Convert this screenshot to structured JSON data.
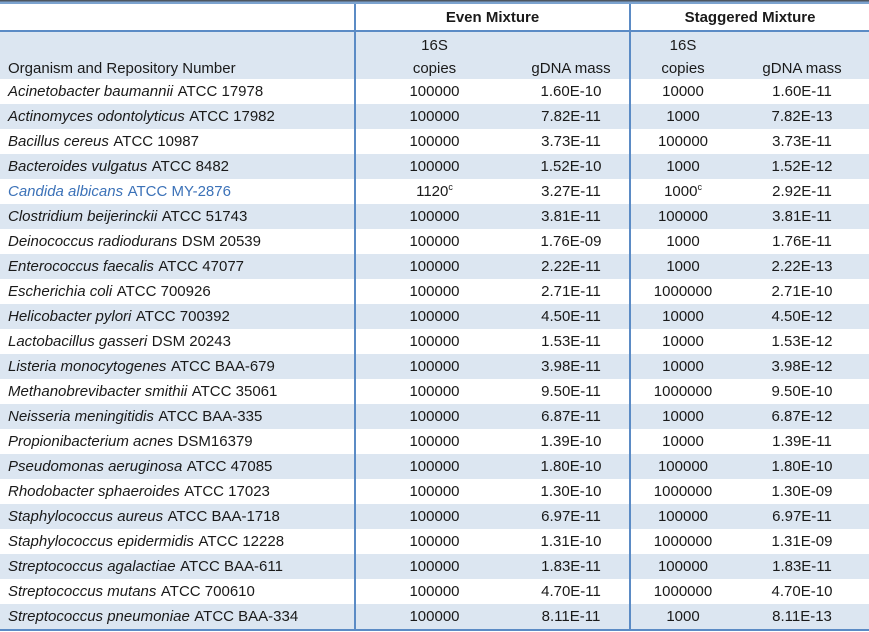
{
  "chart_data": {
    "type": "table",
    "title": "",
    "group_headers": [
      "Even Mixture",
      "Staggered Mixture"
    ],
    "subheader_16s": "16S",
    "col_headers": {
      "organism": "Organism and Repository Number",
      "copies": "copies",
      "gdna_mass": "gDNA mass"
    },
    "footnote_marker": "c",
    "colors": {
      "stripe": "#DCE6F1",
      "rule_blue": "#5B8BC5",
      "highlight_text": "#3C72B8",
      "text": "#1A1A1A"
    },
    "rows": [
      {
        "organism_italic": "Acinetobacter baumannii",
        "organism_rest": "ATCC 17978",
        "even_copies": "100000",
        "even_copies_sup": "",
        "even_gdna": "1.60E-10",
        "stag_copies": "10000",
        "stag_copies_sup": "",
        "stag_gdna": "1.60E-11",
        "highlight": false
      },
      {
        "organism_italic": "Actinomyces odontolyticus",
        "organism_rest": "ATCC 17982",
        "even_copies": "100000",
        "even_copies_sup": "",
        "even_gdna": "7.82E-11",
        "stag_copies": "1000",
        "stag_copies_sup": "",
        "stag_gdna": "7.82E-13",
        "highlight": false
      },
      {
        "organism_italic": "Bacillus cereus",
        "organism_rest": "ATCC 10987",
        "even_copies": "100000",
        "even_copies_sup": "",
        "even_gdna": "3.73E-11",
        "stag_copies": "100000",
        "stag_copies_sup": "",
        "stag_gdna": "3.73E-11",
        "highlight": false
      },
      {
        "organism_italic": "Bacteroides vulgatus",
        "organism_rest": "ATCC 8482",
        "even_copies": "100000",
        "even_copies_sup": "",
        "even_gdna": "1.52E-10",
        "stag_copies": "1000",
        "stag_copies_sup": "",
        "stag_gdna": "1.52E-12",
        "highlight": false
      },
      {
        "organism_italic": "Candida albicans",
        "organism_rest": "ATCC MY-2876",
        "even_copies": "1120",
        "even_copies_sup": "c",
        "even_gdna": "3.27E-11",
        "stag_copies": "1000",
        "stag_copies_sup": "c",
        "stag_gdna": "2.92E-11",
        "highlight": true
      },
      {
        "organism_italic": "Clostridium beijerinckii",
        "organism_rest": "ATCC 51743",
        "even_copies": "100000",
        "even_copies_sup": "",
        "even_gdna": "3.81E-11",
        "stag_copies": "100000",
        "stag_copies_sup": "",
        "stag_gdna": "3.81E-11",
        "highlight": false
      },
      {
        "organism_italic": "Deinococcus radiodurans",
        "organism_rest": "DSM 20539",
        "even_copies": "100000",
        "even_copies_sup": "",
        "even_gdna": "1.76E-09",
        "stag_copies": "1000",
        "stag_copies_sup": "",
        "stag_gdna": "1.76E-11",
        "highlight": false
      },
      {
        "organism_italic": "Enterococcus faecalis",
        "organism_rest": "ATCC 47077",
        "even_copies": "100000",
        "even_copies_sup": "",
        "even_gdna": "2.22E-11",
        "stag_copies": "1000",
        "stag_copies_sup": "",
        "stag_gdna": "2.22E-13",
        "highlight": false
      },
      {
        "organism_italic": "Escherichia coli",
        "organism_rest": "ATCC 700926",
        "even_copies": "100000",
        "even_copies_sup": "",
        "even_gdna": "2.71E-11",
        "stag_copies": "1000000",
        "stag_copies_sup": "",
        "stag_gdna": "2.71E-10",
        "highlight": false
      },
      {
        "organism_italic": "Helicobacter pylori",
        "organism_rest": "ATCC 700392",
        "even_copies": "100000",
        "even_copies_sup": "",
        "even_gdna": "4.50E-11",
        "stag_copies": "10000",
        "stag_copies_sup": "",
        "stag_gdna": "4.50E-12",
        "highlight": false
      },
      {
        "organism_italic": "Lactobacillus gasseri",
        "organism_rest": "DSM 20243",
        "even_copies": "100000",
        "even_copies_sup": "",
        "even_gdna": "1.53E-11",
        "stag_copies": "10000",
        "stag_copies_sup": "",
        "stag_gdna": "1.53E-12",
        "highlight": false
      },
      {
        "organism_italic": "Listeria monocytogenes",
        "organism_rest": "ATCC BAA-679",
        "even_copies": "100000",
        "even_copies_sup": "",
        "even_gdna": "3.98E-11",
        "stag_copies": "10000",
        "stag_copies_sup": "",
        "stag_gdna": "3.98E-12",
        "highlight": false
      },
      {
        "organism_italic": "Methanobrevibacter smithii",
        "organism_rest": "ATCC 35061",
        "even_copies": "100000",
        "even_copies_sup": "",
        "even_gdna": "9.50E-11",
        "stag_copies": "1000000",
        "stag_copies_sup": "",
        "stag_gdna": "9.50E-10",
        "highlight": false
      },
      {
        "organism_italic": "Neisseria meningitidis",
        "organism_rest": "ATCC BAA-335",
        "even_copies": "100000",
        "even_copies_sup": "",
        "even_gdna": "6.87E-11",
        "stag_copies": "10000",
        "stag_copies_sup": "",
        "stag_gdna": "6.87E-12",
        "highlight": false
      },
      {
        "organism_italic": "Propionibacterium acnes",
        "organism_rest": "DSM16379",
        "even_copies": "100000",
        "even_copies_sup": "",
        "even_gdna": "1.39E-10",
        "stag_copies": "10000",
        "stag_copies_sup": "",
        "stag_gdna": "1.39E-11",
        "highlight": false
      },
      {
        "organism_italic": "Pseudomonas aeruginosa",
        "organism_rest": "ATCC 47085",
        "even_copies": "100000",
        "even_copies_sup": "",
        "even_gdna": "1.80E-10",
        "stag_copies": "100000",
        "stag_copies_sup": "",
        "stag_gdna": "1.80E-10",
        "highlight": false
      },
      {
        "organism_italic": "Rhodobacter sphaeroides",
        "organism_rest": "ATCC 17023",
        "even_copies": "100000",
        "even_copies_sup": "",
        "even_gdna": "1.30E-10",
        "stag_copies": "1000000",
        "stag_copies_sup": "",
        "stag_gdna": "1.30E-09",
        "highlight": false
      },
      {
        "organism_italic": "Staphylococcus aureus",
        "organism_rest": "ATCC BAA-1718",
        "even_copies": "100000",
        "even_copies_sup": "",
        "even_gdna": "6.97E-11",
        "stag_copies": "100000",
        "stag_copies_sup": "",
        "stag_gdna": "6.97E-11",
        "highlight": false
      },
      {
        "organism_italic": "Staphylococcus epidermidis",
        "organism_rest": "ATCC 12228",
        "even_copies": "100000",
        "even_copies_sup": "",
        "even_gdna": "1.31E-10",
        "stag_copies": "1000000",
        "stag_copies_sup": "",
        "stag_gdna": "1.31E-09",
        "highlight": false
      },
      {
        "organism_italic": "Streptococcus agalactiae",
        "organism_rest": "ATCC BAA-611",
        "even_copies": "100000",
        "even_copies_sup": "",
        "even_gdna": "1.83E-11",
        "stag_copies": "100000",
        "stag_copies_sup": "",
        "stag_gdna": "1.83E-11",
        "highlight": false
      },
      {
        "organism_italic": "Streptococcus mutans",
        "organism_rest": "ATCC 700610",
        "even_copies": "100000",
        "even_copies_sup": "",
        "even_gdna": "4.70E-11",
        "stag_copies": "1000000",
        "stag_copies_sup": "",
        "stag_gdna": "4.70E-10",
        "highlight": false
      },
      {
        "organism_italic": "Streptococcus pneumoniae",
        "organism_rest": "ATCC BAA-334",
        "even_copies": "100000",
        "even_copies_sup": "",
        "even_gdna": "8.11E-11",
        "stag_copies": "1000",
        "stag_copies_sup": "",
        "stag_gdna": "8.11E-13",
        "highlight": false
      }
    ]
  }
}
